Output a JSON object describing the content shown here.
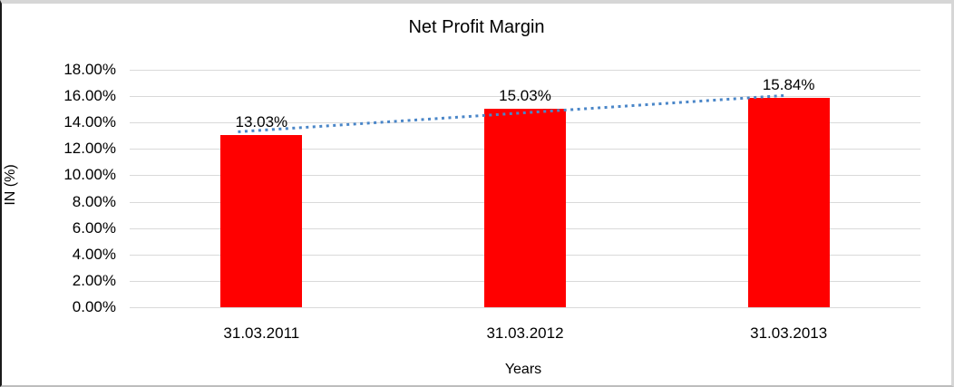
{
  "chart_data": {
    "type": "bar",
    "title": "Net Profit Margin",
    "categories": [
      "31.03.2011",
      "31.03.2012",
      "31.03.2013"
    ],
    "values": [
      13.03,
      15.03,
      15.84
    ],
    "data_labels": [
      "13.03%",
      "15.03%",
      "15.84%"
    ],
    "xlabel": "Years",
    "ylabel": "IN (%)",
    "ylim": [
      0,
      18
    ],
    "ytick_step": 2,
    "ytick_labels": [
      "0.00%",
      "2.00%",
      "4.00%",
      "6.00%",
      "8.00%",
      "10.00%",
      "12.00%",
      "14.00%",
      "16.00%",
      "18.00%"
    ],
    "grid": true,
    "legend": false,
    "bar_color": "#ff0000",
    "gridline_color": "#d9d9d9",
    "text_color": "#000000",
    "trendline": {
      "type": "linear",
      "style": "dotted",
      "color": "#4a86c8",
      "start": {
        "x_frac": 0.137,
        "value": 13.3
      },
      "end": {
        "x_frac": 0.828,
        "value": 16.05
      }
    }
  }
}
